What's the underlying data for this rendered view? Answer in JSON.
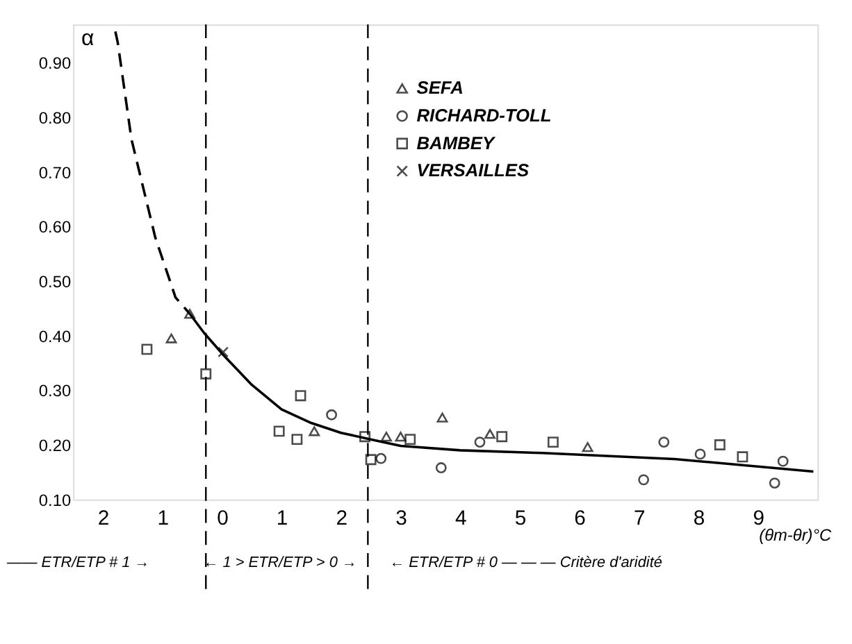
{
  "chart_data": {
    "type": "scatter",
    "xlabel": "(θm-θr)°C",
    "ylabel": "α",
    "xlim": [
      -2.5,
      10
    ],
    "ylim": [
      0.1,
      0.97
    ],
    "xticks": [
      {
        "value": -2,
        "label": "2"
      },
      {
        "value": -1,
        "label": "1"
      },
      0,
      1,
      2,
      3,
      4,
      5,
      6,
      7,
      8,
      9
    ],
    "yticks": [
      {
        "value": 0.1,
        "label": "0.10"
      },
      {
        "value": 0.2,
        "label": "0.20"
      },
      {
        "value": 0.3,
        "label": "0.30"
      },
      {
        "value": 0.4,
        "label": "0.40"
      },
      {
        "value": 0.5,
        "label": "0.50"
      },
      {
        "value": 0.6,
        "label": "0.60"
      },
      {
        "value": 0.7,
        "label": "0.70"
      },
      {
        "value": 0.8,
        "label": "0.80"
      },
      {
        "value": 0.9,
        "label": "0.90"
      }
    ],
    "grid": false,
    "legend": "top",
    "series": [
      {
        "name": "SEFA",
        "color": "#000000",
        "marker": "triangle",
        "x": [
          -0.85,
          -0.54,
          1.55,
          2.76,
          3.0,
          3.7,
          4.5,
          6.14
        ],
        "values": [
          0.395,
          0.44,
          0.225,
          0.215,
          0.215,
          0.25,
          0.22,
          0.196
        ]
      },
      {
        "name": "RICHARD-TOLL",
        "color": "#000000",
        "marker": "circle",
        "x": [
          1.84,
          2.67,
          3.68,
          4.33,
          7.08,
          7.42,
          8.03,
          9.28,
          9.42
        ],
        "values": [
          0.255,
          0.175,
          0.158,
          0.205,
          0.136,
          0.205,
          0.183,
          0.13,
          0.17
        ]
      },
      {
        "name": "BAMBEY",
        "color": "#000000",
        "marker": "square",
        "x": [
          -1.26,
          -0.27,
          0.96,
          1.26,
          1.32,
          2.4,
          2.5,
          3.16,
          4.7,
          5.56,
          8.36,
          8.74
        ],
        "values": [
          0.375,
          0.33,
          0.225,
          0.21,
          0.29,
          0.215,
          0.173,
          0.21,
          0.215,
          0.205,
          0.2,
          0.178
        ]
      },
      {
        "name": "VERSAILLES",
        "color": "#000000",
        "marker": "cross",
        "x": [
          0.02
        ],
        "values": [
          0.37
        ]
      },
      {
        "type": "line",
        "color": "#000000",
        "line_style": "dashed",
        "marker": "none",
        "x": [
          -1.79,
          -1.75,
          -1.52,
          -1.12,
          -0.78,
          -0.54
        ],
        "values": [
          0.957,
          0.937,
          0.76,
          0.58,
          0.47,
          0.44
        ]
      },
      {
        "type": "line",
        "color": "#000000",
        "line_style": "solid",
        "marker": "none",
        "x": [
          -0.54,
          -0.3,
          0.02,
          0.5,
          1.0,
          1.5,
          2.0,
          2.5,
          3.0,
          4.0,
          5.38,
          7.6,
          9.93
        ],
        "values": [
          0.44,
          0.405,
          0.365,
          0.31,
          0.265,
          0.24,
          0.222,
          0.21,
          0.198,
          0.19,
          0.185,
          0.174,
          0.151
        ]
      }
    ],
    "ref_lines": [
      {
        "axis": "x",
        "value": -0.27,
        "line_style": "dashed",
        "color": "#000000"
      },
      {
        "axis": "x",
        "value": 2.45,
        "line_style": "dashed",
        "color": "#000000"
      }
    ],
    "annotations": [
      "—— ETR/ETP # 1 →",
      "← 1 > ETR/ETP > 0 →",
      "← ETR/ETP # 0 — — — Critère d'aridité"
    ]
  }
}
